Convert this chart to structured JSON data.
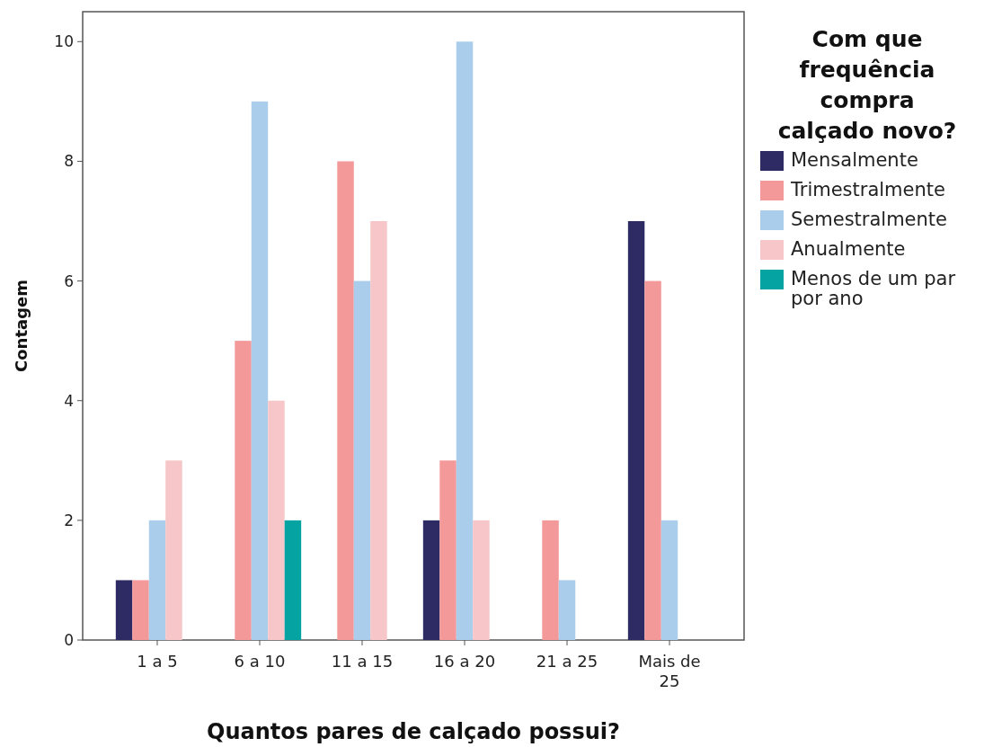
{
  "chart_data": {
    "type": "bar",
    "xlabel": "Quantos pares de calçado possui?",
    "ylabel": "Contagem",
    "legend_title": "Com que frequência compra calçado novo?",
    "categories": [
      "1 a 5",
      "6 a 10",
      "11 a 15",
      "16 a 20",
      "21 a 25",
      "Mais de 25"
    ],
    "series": [
      {
        "name": "Mensalmente",
        "color": "#2e2a63",
        "values": [
          1,
          0,
          0,
          2,
          0,
          7
        ]
      },
      {
        "name": "Trimestralmente",
        "color": "#f4999a",
        "values": [
          1,
          5,
          8,
          3,
          2,
          6
        ]
      },
      {
        "name": "Semestralmente",
        "color": "#a9cdea",
        "values": [
          2,
          9,
          6,
          10,
          1,
          2
        ]
      },
      {
        "name": "Anualmente",
        "color": "#f7c6c8",
        "values": [
          3,
          4,
          7,
          2,
          0,
          0
        ]
      },
      {
        "name": "Menos de um par por ano",
        "color": "#06a3a3",
        "values": [
          0,
          2,
          0,
          0,
          0,
          0
        ]
      }
    ],
    "ylim": [
      0,
      10.5
    ],
    "yticks": [
      0,
      2,
      4,
      6,
      8,
      10
    ],
    "legend": "right"
  }
}
